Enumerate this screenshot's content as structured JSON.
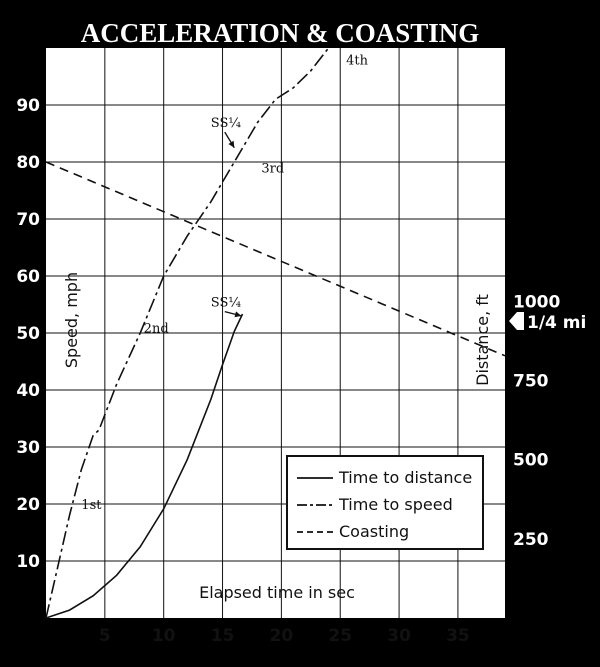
{
  "chart_data": {
    "type": "line",
    "title": "ACCELERATION & COASTING",
    "xlabel": "Elapsed time in sec",
    "ylabel": "Speed, mph",
    "y2label": "Distance, ft",
    "xlim": [
      0,
      39
    ],
    "ylim": [
      0,
      100
    ],
    "y2lim": [
      0,
      1800
    ],
    "x_ticks": [
      "5",
      "10",
      "15",
      "20",
      "25",
      "30",
      "35"
    ],
    "y_ticks": [
      "10",
      "20",
      "30",
      "40",
      "50",
      "60",
      "70",
      "80",
      "90"
    ],
    "y2_ticks": [
      "250",
      "500",
      "750",
      "1000"
    ],
    "grid": true,
    "legend_position": "bottom-right",
    "series": [
      {
        "name": "Time to distance",
        "axis": "y2",
        "style": "solid",
        "x": [
          0,
          2,
          4,
          6,
          8,
          10,
          12,
          14,
          15,
          16,
          16.7
        ],
        "y": [
          0,
          25,
          70,
          135,
          225,
          345,
          500,
          690,
          800,
          905,
          960
        ]
      },
      {
        "name": "Time to speed",
        "axis": "y",
        "style": "dash-dot",
        "x": [
          0,
          1,
          2,
          3,
          4,
          4.5,
          6,
          8,
          10,
          12,
          14,
          16,
          18,
          19.5,
          21,
          22.5,
          24
        ],
        "y": [
          0,
          9,
          18,
          26,
          32,
          33,
          41,
          50,
          60,
          67,
          73,
          80,
          87,
          91,
          93,
          96,
          100
        ]
      },
      {
        "name": "Coasting",
        "axis": "y",
        "style": "dashed",
        "x": [
          0,
          39
        ],
        "y": [
          80,
          46
        ]
      }
    ],
    "annotations": [
      {
        "text": "1st",
        "x": 3,
        "y": 20
      },
      {
        "text": "2nd",
        "x": 8.3,
        "y": 51
      },
      {
        "text": "3rd",
        "x": 18.3,
        "y": 79
      },
      {
        "text": "4th",
        "x": 25.5,
        "y": 98
      },
      {
        "text": "SS¼",
        "x": 14,
        "y": 87,
        "target": [
          16,
          82.5
        ]
      },
      {
        "text": "SS¼",
        "x": 14,
        "y": 55.5,
        "target": [
          16.6,
          53
        ]
      }
    ],
    "side_marker": {
      "text": "1/4 mi",
      "value": 1320
    }
  }
}
